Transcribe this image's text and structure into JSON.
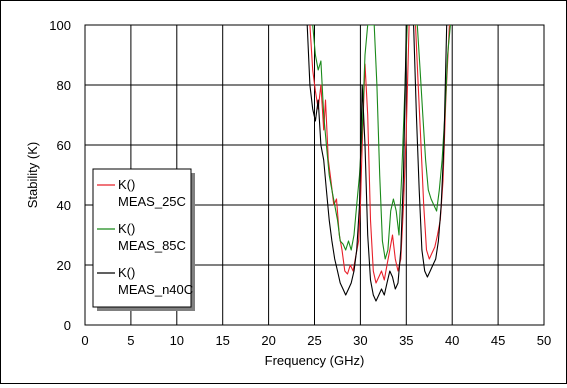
{
  "chart_data": {
    "type": "line",
    "title": "",
    "xlabel": "Frequency (GHz)",
    "ylabel": "Stability (K)",
    "xlim": [
      0,
      50
    ],
    "ylim": [
      0,
      100
    ],
    "xticks": [
      0,
      5,
      10,
      15,
      20,
      25,
      30,
      35,
      40,
      45,
      50
    ],
    "yticks": [
      0,
      20,
      40,
      60,
      80,
      100
    ],
    "grid": true,
    "legend_position": "lower-left",
    "series": [
      {
        "name": "MEAS_25C",
        "label_top": "K()",
        "label_bottom": "MEAS_25C",
        "color": "#e8202a",
        "points": [
          [
            24.5,
            100
          ],
          [
            24.8,
            85
          ],
          [
            25.1,
            78
          ],
          [
            25.4,
            72
          ],
          [
            25.7,
            80
          ],
          [
            26.0,
            65
          ],
          [
            26.2,
            75
          ],
          [
            26.5,
            55
          ],
          [
            26.8,
            48
          ],
          [
            27.1,
            40
          ],
          [
            27.4,
            42
          ],
          [
            27.7,
            30
          ],
          [
            28.0,
            25
          ],
          [
            28.3,
            18
          ],
          [
            28.6,
            17
          ],
          [
            28.9,
            20
          ],
          [
            29.2,
            18
          ],
          [
            29.5,
            23
          ],
          [
            29.8,
            28
          ],
          [
            30.0,
            40
          ],
          [
            30.2,
            60
          ],
          [
            30.5,
            87
          ],
          [
            30.8,
            70
          ],
          [
            31.1,
            35
          ],
          [
            31.4,
            18
          ],
          [
            31.7,
            14
          ],
          [
            32.0,
            16
          ],
          [
            32.3,
            18
          ],
          [
            32.6,
            15
          ],
          [
            32.9,
            20
          ],
          [
            33.2,
            25
          ],
          [
            33.5,
            30
          ],
          [
            33.8,
            22
          ],
          [
            34.1,
            18
          ],
          [
            34.4,
            22
          ],
          [
            34.7,
            40
          ],
          [
            35.0,
            65
          ],
          [
            35.3,
            100
          ],
          [
            36.0,
            100
          ],
          [
            36.3,
            80
          ],
          [
            36.6,
            60
          ],
          [
            36.9,
            40
          ],
          [
            37.2,
            25
          ],
          [
            37.5,
            22
          ],
          [
            37.8,
            24
          ],
          [
            38.1,
            26
          ],
          [
            38.4,
            30
          ],
          [
            38.7,
            35
          ],
          [
            39.0,
            48
          ],
          [
            39.3,
            75
          ],
          [
            39.7,
            100
          ]
        ]
      },
      {
        "name": "MEAS_85C",
        "label_top": "K()",
        "label_bottom": "MEAS_85C",
        "color": "#1a8a1a",
        "points": [
          [
            24.8,
            100
          ],
          [
            25.1,
            90
          ],
          [
            25.4,
            85
          ],
          [
            25.7,
            88
          ],
          [
            26.0,
            70
          ],
          [
            26.3,
            60
          ],
          [
            26.6,
            50
          ],
          [
            26.9,
            45
          ],
          [
            27.2,
            40
          ],
          [
            27.5,
            35
          ],
          [
            27.8,
            28
          ],
          [
            28.1,
            27
          ],
          [
            28.4,
            25
          ],
          [
            28.7,
            28
          ],
          [
            29.0,
            25
          ],
          [
            29.3,
            30
          ],
          [
            29.6,
            40
          ],
          [
            29.9,
            50
          ],
          [
            30.2,
            65
          ],
          [
            30.5,
            90
          ],
          [
            30.8,
            100
          ],
          [
            31.5,
            100
          ],
          [
            31.8,
            80
          ],
          [
            32.1,
            50
          ],
          [
            32.4,
            28
          ],
          [
            32.7,
            22
          ],
          [
            33.0,
            25
          ],
          [
            33.3,
            38
          ],
          [
            33.6,
            42
          ],
          [
            33.9,
            38
          ],
          [
            34.2,
            30
          ],
          [
            34.5,
            50
          ],
          [
            34.8,
            75
          ],
          [
            35.1,
            100
          ],
          [
            36.2,
            100
          ],
          [
            36.5,
            85
          ],
          [
            36.8,
            70
          ],
          [
            37.1,
            55
          ],
          [
            37.4,
            45
          ],
          [
            37.7,
            42
          ],
          [
            38.0,
            40
          ],
          [
            38.3,
            38
          ],
          [
            38.6,
            45
          ],
          [
            38.9,
            55
          ],
          [
            39.2,
            70
          ],
          [
            39.5,
            90
          ],
          [
            39.8,
            100
          ]
        ]
      },
      {
        "name": "MEAS_n40C",
        "label_top": "K()",
        "label_bottom": "MEAS_n40C",
        "color": "#000000",
        "points": [
          [
            24.2,
            100
          ],
          [
            24.5,
            80
          ],
          [
            24.8,
            72
          ],
          [
            25.1,
            68
          ],
          [
            25.4,
            75
          ],
          [
            25.7,
            60
          ],
          [
            26.0,
            55
          ],
          [
            26.3,
            45
          ],
          [
            26.6,
            35
          ],
          [
            26.9,
            28
          ],
          [
            27.2,
            22
          ],
          [
            27.5,
            18
          ],
          [
            27.8,
            14
          ],
          [
            28.1,
            12
          ],
          [
            28.4,
            10
          ],
          [
            28.7,
            12
          ],
          [
            29.0,
            14
          ],
          [
            29.3,
            18
          ],
          [
            29.6,
            25
          ],
          [
            29.9,
            40
          ],
          [
            30.2,
            80
          ],
          [
            30.5,
            60
          ],
          [
            30.8,
            30
          ],
          [
            31.1,
            15
          ],
          [
            31.4,
            10
          ],
          [
            31.7,
            8
          ],
          [
            32.0,
            10
          ],
          [
            32.3,
            12
          ],
          [
            32.6,
            10
          ],
          [
            32.9,
            14
          ],
          [
            33.2,
            18
          ],
          [
            33.5,
            16
          ],
          [
            33.8,
            12
          ],
          [
            34.1,
            14
          ],
          [
            34.4,
            25
          ],
          [
            34.7,
            50
          ],
          [
            35.0,
            100
          ],
          [
            35.8,
            100
          ],
          [
            36.1,
            70
          ],
          [
            36.4,
            45
          ],
          [
            36.7,
            25
          ],
          [
            37.0,
            18
          ],
          [
            37.3,
            16
          ],
          [
            37.6,
            18
          ],
          [
            37.9,
            20
          ],
          [
            38.2,
            22
          ],
          [
            38.5,
            28
          ],
          [
            38.8,
            40
          ],
          [
            39.1,
            60
          ],
          [
            39.4,
            100
          ]
        ]
      }
    ]
  }
}
